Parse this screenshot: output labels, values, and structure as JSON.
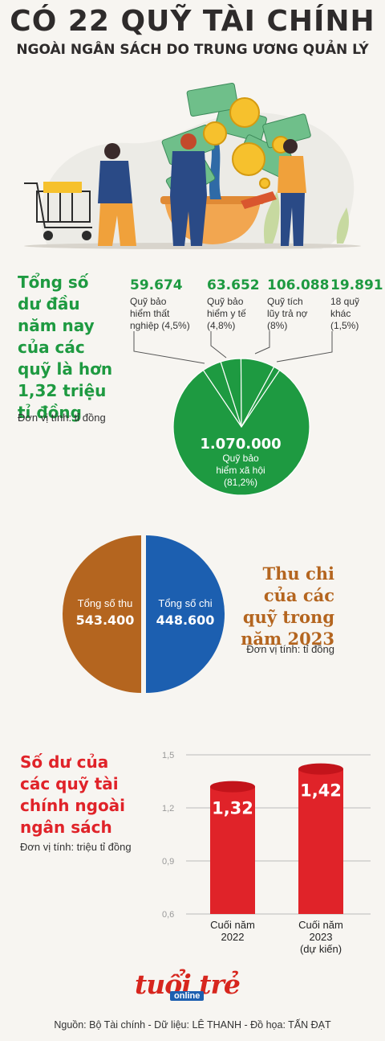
{
  "header": {
    "title": "CÓ 22 QUỸ TÀI CHÍNH",
    "subtitle": "NGOÀI NGÂN SÁCH DO TRUNG ƯƠNG QUẢN LÝ"
  },
  "section1": {
    "title_lines": [
      "Tổng số",
      "dư đầu",
      "năm nay",
      "của các",
      "quỹ là hơn",
      "1,32 triệu",
      "tỉ đồng"
    ],
    "unit": "Đơn vị tính: tỉ đồng",
    "funds": [
      {
        "value": "59.674",
        "label_lines": [
          "Quỹ bảo",
          "hiểm thất",
          "nghiệp (4,5%)"
        ]
      },
      {
        "value": "63.652",
        "label_lines": [
          "Quỹ bảo",
          "hiểm y tế",
          "(4,8%)"
        ]
      },
      {
        "value": "106.088",
        "label_lines": [
          "Quỹ tích",
          "lũy trả nợ",
          "(8%)"
        ]
      },
      {
        "value": "19.891",
        "label_lines": [
          "18 quỹ",
          "khác",
          "(1,5%)"
        ]
      }
    ],
    "main_value": "1.070.000",
    "main_label_lines": [
      "Quỹ bảo",
      "hiểm xã hội",
      "(81,2%)"
    ]
  },
  "section2": {
    "title_lines": [
      "Thu chi",
      "của các",
      "quỹ trong",
      "năm 2023"
    ],
    "unit": "Đơn vị tính: tỉ đồng",
    "income_label": "Tổng số thu",
    "income_value": "543.400",
    "expense_label": "Tổng số chi",
    "expense_value": "448.600"
  },
  "section3": {
    "title_lines": [
      "Số dư của",
      "các quỹ tài",
      "chính ngoài",
      "ngân sách"
    ],
    "unit": "Đơn vị tính: triệu tỉ đồng"
  },
  "chart_data": [
    {
      "type": "pie",
      "categories": [
        "Quỹ bảo hiểm xã hội",
        "Quỹ bảo hiểm thất nghiệp",
        "Quỹ bảo hiểm y tế",
        "Quỹ tích lũy trả nợ",
        "18 quỹ khác"
      ],
      "values": [
        1070000,
        59674,
        63652,
        106088,
        19891
      ],
      "percent": [
        81.2,
        4.5,
        4.8,
        8,
        1.5
      ],
      "colors": [
        "#1e9a41"
      ]
    },
    {
      "type": "pie",
      "categories": [
        "Tổng số thu",
        "Tổng số chi"
      ],
      "values": [
        543400,
        448600
      ],
      "colors": [
        "#b4651f",
        "#1c5fb0"
      ]
    },
    {
      "type": "bar",
      "categories": [
        "Cuối năm 2022",
        "Cuối năm 2023 (dự kiến)"
      ],
      "category_lines": [
        [
          "Cuối năm",
          "2022"
        ],
        [
          "Cuối năm",
          "2023",
          "(dự kiến)"
        ]
      ],
      "values": [
        1.32,
        1.42
      ],
      "value_labels": [
        "1,32",
        "1,42"
      ],
      "yticks": [
        1.5,
        1.2,
        0.9,
        0.6
      ],
      "ytick_labels": [
        "1,5",
        "1,2",
        "0,9",
        "0,6"
      ],
      "ylim": [
        0.6,
        1.5
      ],
      "grid": true,
      "colors": [
        "#e02329"
      ]
    }
  ],
  "logo": {
    "main": "tuổi trẻ",
    "sub": "online"
  },
  "source": "Nguồn: Bộ Tài chính - Dữ liệu: LÊ THANH - Đồ họa: TẤN ĐẠT"
}
